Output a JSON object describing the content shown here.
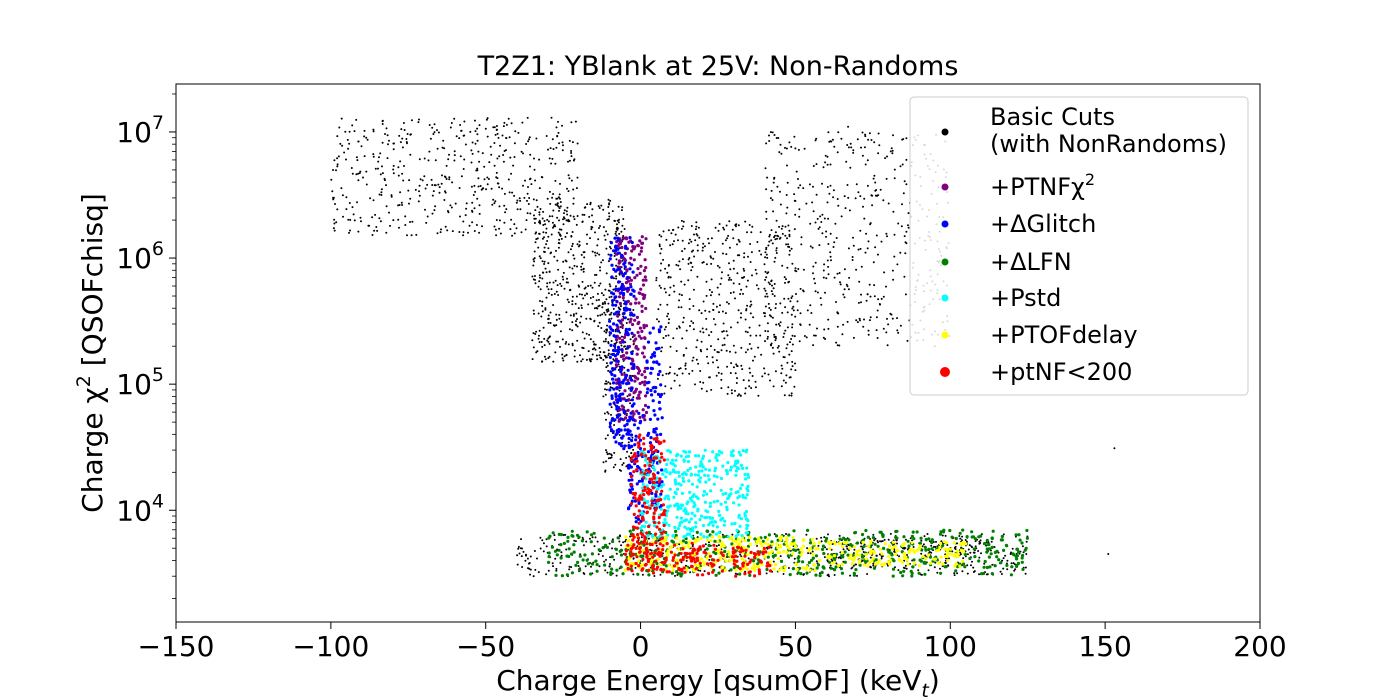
{
  "chart_data": {
    "type": "scatter",
    "title": "T2Z1: YBlank at 25V: Non-Randoms",
    "xlabel": "Charge Energy [qsumOF] (keV",
    "xlabel_sub": "t",
    "xlabel_end": ")",
    "ylabel": "Charge χ",
    "ylabel_sup": "2",
    "ylabel_end": " [QSOFchisq]",
    "xlim": [
      -150,
      200
    ],
    "ylim": [
      1300,
      24000000
    ],
    "yscale": "log",
    "grid": false,
    "legend_position": "top-right",
    "x_ticks": [
      {
        "value": -150,
        "label": "−150"
      },
      {
        "value": -100,
        "label": "−100"
      },
      {
        "value": -50,
        "label": "−50"
      },
      {
        "value": 0,
        "label": "0"
      },
      {
        "value": 50,
        "label": "50"
      },
      {
        "value": 100,
        "label": "100"
      },
      {
        "value": 150,
        "label": "150"
      },
      {
        "value": 200,
        "label": "200"
      }
    ],
    "y_ticks": [
      {
        "value": 10000,
        "base": "10",
        "exp": "4"
      },
      {
        "value": 100000,
        "base": "10",
        "exp": "5"
      },
      {
        "value": 1000000,
        "base": "10",
        "exp": "6"
      },
      {
        "value": 10000000,
        "base": "10",
        "exp": "7"
      }
    ],
    "series": [
      {
        "name": "Basic Cuts",
        "name_line2": "(with NonRandoms)",
        "color": "#000000",
        "clusters": [
          {
            "x": [
              -100,
              -20
            ],
            "y": [
              1500000,
              13000000
            ]
          },
          {
            "x": [
              -35,
              -5
            ],
            "y": [
              150000,
              3000000
            ]
          },
          {
            "x": [
              -12,
              -2
            ],
            "y": [
              20000,
              400000
            ]
          },
          {
            "x": [
              5,
              50
            ],
            "y": [
              80000,
              2000000
            ]
          },
          {
            "x": [
              -40,
              125
            ],
            "y": [
              3000,
              6500
            ]
          },
          {
            "x": [
              60,
              110
            ],
            "y": [
              3500,
              6000
            ]
          },
          {
            "x": [
              40,
              100
            ],
            "y": [
              200000,
              10000000
            ]
          }
        ],
        "points": [
          [
            153,
            31000
          ],
          [
            151,
            4500
          ],
          [
            95,
            200000
          ],
          [
            -34,
            250000
          ],
          [
            67,
            11000000
          ]
        ]
      },
      {
        "name": "+PTNFχ",
        "name_sup": "2",
        "color": "#800080",
        "clusters": [
          {
            "x": [
              -8,
              2
            ],
            "y": [
              50000,
              1500000
            ]
          }
        ]
      },
      {
        "name": "+ΔGlitch",
        "color": "#0000ff",
        "clusters": [
          {
            "x": [
              -10,
              -2
            ],
            "y": [
              30000,
              1500000
            ]
          },
          {
            "x": [
              -4,
              1
            ],
            "y": [
              8000,
              60000
            ]
          },
          {
            "x": [
              2,
              7
            ],
            "y": [
              10000,
              300000
            ]
          }
        ]
      },
      {
        "name": "+ΔLFN",
        "color": "#008000",
        "clusters": [
          {
            "x": [
              -30,
              125
            ],
            "y": [
              3000,
              7000
            ]
          }
        ]
      },
      {
        "name": "+Pstd",
        "color": "#00ffff",
        "clusters": [
          {
            "x": [
              0,
              35
            ],
            "y": [
              6000,
              30000
            ]
          }
        ]
      },
      {
        "name": "+PTOFdelay",
        "color": "#ffff00",
        "clusters": [
          {
            "x": [
              -5,
              58
            ],
            "y": [
              3300,
              6200
            ]
          },
          {
            "x": [
              60,
              105
            ],
            "y": [
              3600,
              5800
            ]
          }
        ]
      },
      {
        "name": "+ptNF<200",
        "color": "#ff0000",
        "clusters": [
          {
            "x": [
              -5,
              42
            ],
            "y": [
              3000,
              5500
            ]
          },
          {
            "x": [
              -3,
              8
            ],
            "y": [
              5500,
              40000
            ]
          }
        ]
      }
    ]
  }
}
